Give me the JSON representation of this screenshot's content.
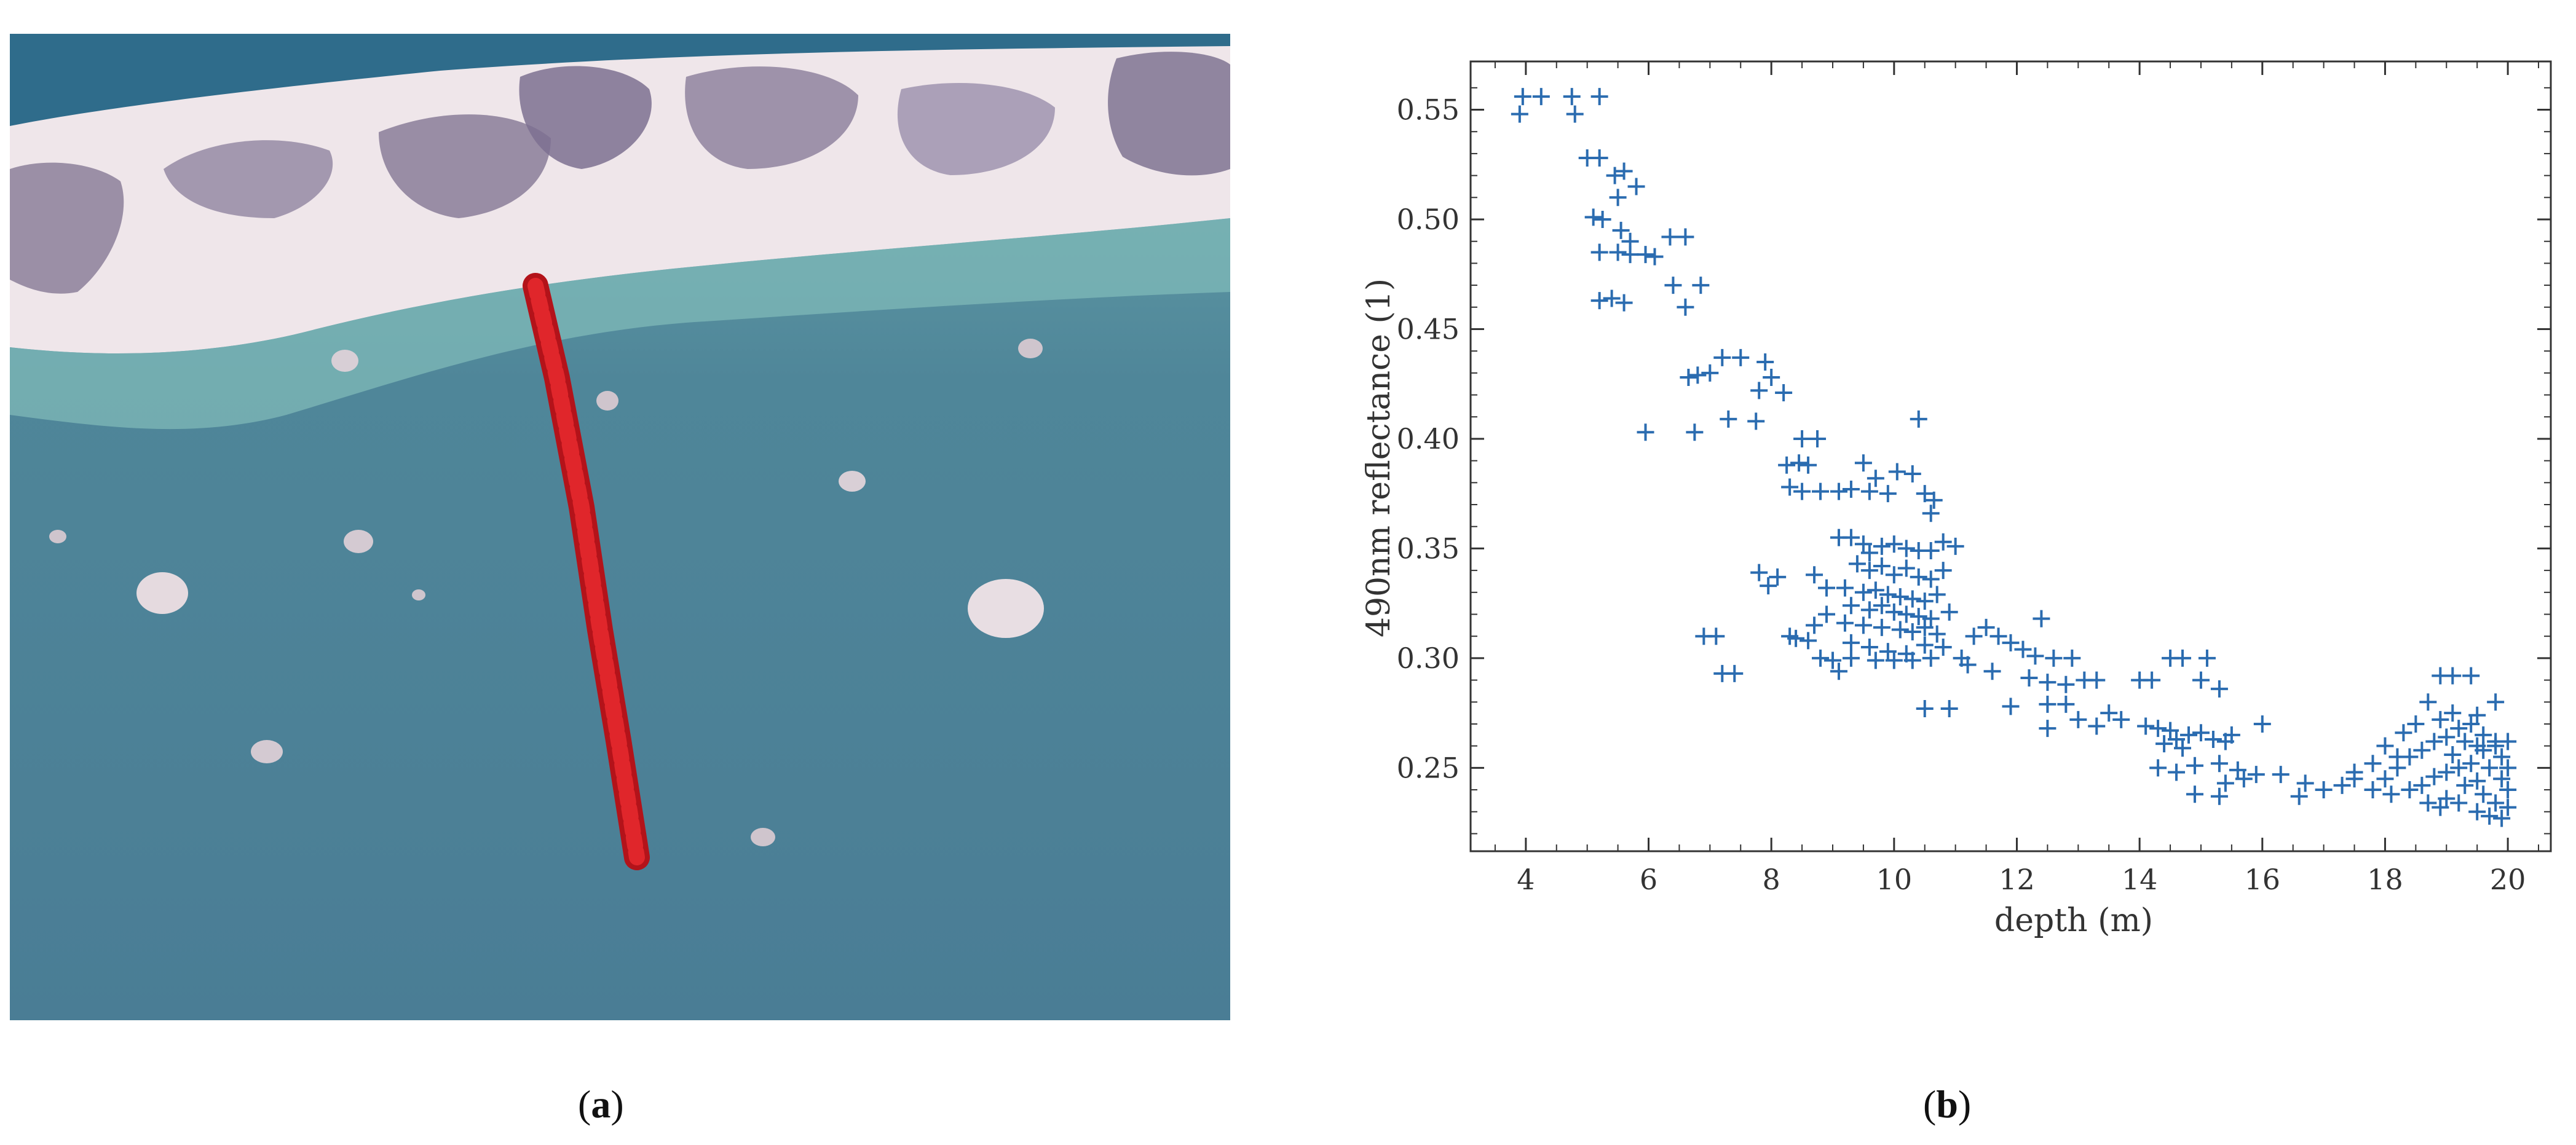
{
  "captions": {
    "a": "a",
    "b": "b"
  },
  "satellite_image": {
    "colors": {
      "deep_water": "#4a7d95",
      "shallow_water": "#7fb9b8",
      "sand": "#efe6ea",
      "vegetation": "#8c7f9a",
      "transect": "#d91e22"
    }
  },
  "chart_data": {
    "type": "scatter",
    "title": "",
    "xlabel": "depth (m)",
    "ylabel": "490nm reflectance (1)",
    "xlim": [
      3.1,
      20.7
    ],
    "ylim": [
      0.212,
      0.572
    ],
    "xticks": [
      4,
      6,
      8,
      10,
      12,
      14,
      16,
      18,
      20
    ],
    "yticks": [
      0.25,
      0.3,
      0.35,
      0.4,
      0.45,
      0.5,
      0.55
    ],
    "ytick_labels": [
      "0.25",
      "0.30",
      "0.35",
      "0.40",
      "0.45",
      "0.50",
      "0.55"
    ],
    "marker": "plus",
    "color": "#2b6cb0",
    "grid": false,
    "legend": "none",
    "points": [
      [
        3.95,
        0.556
      ],
      [
        4.25,
        0.556
      ],
      [
        4.75,
        0.556
      ],
      [
        5.2,
        0.556
      ],
      [
        3.9,
        0.548
      ],
      [
        4.8,
        0.548
      ],
      [
        5.0,
        0.528
      ],
      [
        5.2,
        0.528
      ],
      [
        5.45,
        0.52
      ],
      [
        5.6,
        0.522
      ],
      [
        5.8,
        0.515
      ],
      [
        5.5,
        0.51
      ],
      [
        5.1,
        0.501
      ],
      [
        5.25,
        0.5
      ],
      [
        5.55,
        0.495
      ],
      [
        5.7,
        0.49
      ],
      [
        6.35,
        0.492
      ],
      [
        6.6,
        0.492
      ],
      [
        5.2,
        0.485
      ],
      [
        5.5,
        0.485
      ],
      [
        5.7,
        0.484
      ],
      [
        5.95,
        0.484
      ],
      [
        6.1,
        0.483
      ],
      [
        6.4,
        0.47
      ],
      [
        6.85,
        0.47
      ],
      [
        5.2,
        0.463
      ],
      [
        5.4,
        0.464
      ],
      [
        5.6,
        0.462
      ],
      [
        6.6,
        0.46
      ],
      [
        6.65,
        0.428
      ],
      [
        6.8,
        0.429
      ],
      [
        7.0,
        0.43
      ],
      [
        7.2,
        0.437
      ],
      [
        7.5,
        0.437
      ],
      [
        7.9,
        0.435
      ],
      [
        8.0,
        0.428
      ],
      [
        7.8,
        0.422
      ],
      [
        8.2,
        0.421
      ],
      [
        7.3,
        0.409
      ],
      [
        7.75,
        0.408
      ],
      [
        5.95,
        0.403
      ],
      [
        6.75,
        0.403
      ],
      [
        8.5,
        0.4
      ],
      [
        8.75,
        0.4
      ],
      [
        10.4,
        0.409
      ],
      [
        8.25,
        0.388
      ],
      [
        8.45,
        0.389
      ],
      [
        8.6,
        0.388
      ],
      [
        9.5,
        0.389
      ],
      [
        9.7,
        0.382
      ],
      [
        10.05,
        0.385
      ],
      [
        10.3,
        0.384
      ],
      [
        10.5,
        0.375
      ],
      [
        10.65,
        0.372
      ],
      [
        10.6,
        0.366
      ],
      [
        8.3,
        0.378
      ],
      [
        8.5,
        0.376
      ],
      [
        8.8,
        0.376
      ],
      [
        9.1,
        0.376
      ],
      [
        9.3,
        0.377
      ],
      [
        9.6,
        0.376
      ],
      [
        9.9,
        0.375
      ],
      [
        9.1,
        0.355
      ],
      [
        9.3,
        0.355
      ],
      [
        9.5,
        0.352
      ],
      [
        9.6,
        0.348
      ],
      [
        9.8,
        0.351
      ],
      [
        10.0,
        0.352
      ],
      [
        10.2,
        0.35
      ],
      [
        10.4,
        0.349
      ],
      [
        10.6,
        0.349
      ],
      [
        10.8,
        0.353
      ],
      [
        11.0,
        0.351
      ],
      [
        9.4,
        0.343
      ],
      [
        9.6,
        0.34
      ],
      [
        9.8,
        0.342
      ],
      [
        10.0,
        0.338
      ],
      [
        10.2,
        0.341
      ],
      [
        10.4,
        0.337
      ],
      [
        10.6,
        0.336
      ],
      [
        10.8,
        0.34
      ],
      [
        8.7,
        0.338
      ],
      [
        8.9,
        0.332
      ],
      [
        7.8,
        0.339
      ],
      [
        8.1,
        0.337
      ],
      [
        7.95,
        0.333
      ],
      [
        9.2,
        0.332
      ],
      [
        9.5,
        0.33
      ],
      [
        9.7,
        0.331
      ],
      [
        9.9,
        0.329
      ],
      [
        10.1,
        0.328
      ],
      [
        10.3,
        0.327
      ],
      [
        10.5,
        0.326
      ],
      [
        10.7,
        0.329
      ],
      [
        9.3,
        0.324
      ],
      [
        9.6,
        0.322
      ],
      [
        9.8,
        0.324
      ],
      [
        10.0,
        0.321
      ],
      [
        10.2,
        0.32
      ],
      [
        10.4,
        0.319
      ],
      [
        10.6,
        0.318
      ],
      [
        10.9,
        0.321
      ],
      [
        9.5,
        0.315
      ],
      [
        9.8,
        0.314
      ],
      [
        10.1,
        0.313
      ],
      [
        10.3,
        0.312
      ],
      [
        10.5,
        0.314
      ],
      [
        10.7,
        0.311
      ],
      [
        8.7,
        0.315
      ],
      [
        8.9,
        0.32
      ],
      [
        9.2,
        0.316
      ],
      [
        8.4,
        0.309
      ],
      [
        8.6,
        0.308
      ],
      [
        9.3,
        0.307
      ],
      [
        9.6,
        0.305
      ],
      [
        9.9,
        0.303
      ],
      [
        10.2,
        0.302
      ],
      [
        10.5,
        0.306
      ],
      [
        10.8,
        0.305
      ],
      [
        11.1,
        0.3
      ],
      [
        8.8,
        0.3
      ],
      [
        9.0,
        0.299
      ],
      [
        9.3,
        0.3
      ],
      [
        9.7,
        0.299
      ],
      [
        10.0,
        0.299
      ],
      [
        10.3,
        0.299
      ],
      [
        10.6,
        0.3
      ],
      [
        9.1,
        0.294
      ],
      [
        8.3,
        0.31
      ],
      [
        6.9,
        0.31
      ],
      [
        7.1,
        0.31
      ],
      [
        7.2,
        0.293
      ],
      [
        7.4,
        0.293
      ],
      [
        11.3,
        0.31
      ],
      [
        11.5,
        0.314
      ],
      [
        11.7,
        0.31
      ],
      [
        11.9,
        0.307
      ],
      [
        12.1,
        0.304
      ],
      [
        12.3,
        0.301
      ],
      [
        12.6,
        0.3
      ],
      [
        12.9,
        0.3
      ],
      [
        11.2,
        0.297
      ],
      [
        11.6,
        0.294
      ],
      [
        12.2,
        0.291
      ],
      [
        12.5,
        0.289
      ],
      [
        12.8,
        0.288
      ],
      [
        13.1,
        0.29
      ],
      [
        13.3,
        0.29
      ],
      [
        12.4,
        0.318
      ],
      [
        11.9,
        0.278
      ],
      [
        12.5,
        0.279
      ],
      [
        12.8,
        0.279
      ],
      [
        13.5,
        0.275
      ],
      [
        10.5,
        0.277
      ],
      [
        10.9,
        0.277
      ],
      [
        12.5,
        0.268
      ],
      [
        13.0,
        0.272
      ],
      [
        13.3,
        0.269
      ],
      [
        13.7,
        0.272
      ],
      [
        14.0,
        0.29
      ],
      [
        14.2,
        0.29
      ],
      [
        14.5,
        0.3
      ],
      [
        14.7,
        0.3
      ],
      [
        15.0,
        0.29
      ],
      [
        15.3,
        0.286
      ],
      [
        15.1,
        0.3
      ],
      [
        14.1,
        0.269
      ],
      [
        14.3,
        0.268
      ],
      [
        14.5,
        0.267
      ],
      [
        14.6,
        0.263
      ],
      [
        14.8,
        0.265
      ],
      [
        15.0,
        0.266
      ],
      [
        15.2,
        0.263
      ],
      [
        15.4,
        0.262
      ],
      [
        14.4,
        0.261
      ],
      [
        14.7,
        0.259
      ],
      [
        15.5,
        0.265
      ],
      [
        14.3,
        0.25
      ],
      [
        14.6,
        0.248
      ],
      [
        14.9,
        0.251
      ],
      [
        15.3,
        0.252
      ],
      [
        15.6,
        0.249
      ],
      [
        15.4,
        0.243
      ],
      [
        15.7,
        0.245
      ],
      [
        15.9,
        0.247
      ],
      [
        16.3,
        0.247
      ],
      [
        16.0,
        0.27
      ],
      [
        14.9,
        0.238
      ],
      [
        15.3,
        0.237
      ],
      [
        16.6,
        0.237
      ],
      [
        17.0,
        0.24
      ],
      [
        17.3,
        0.242
      ],
      [
        17.5,
        0.245
      ],
      [
        16.7,
        0.243
      ],
      [
        17.8,
        0.24
      ],
      [
        18.0,
        0.245
      ],
      [
        18.2,
        0.25
      ],
      [
        18.4,
        0.255
      ],
      [
        18.6,
        0.258
      ],
      [
        18.8,
        0.262
      ],
      [
        19.0,
        0.264
      ],
      [
        19.2,
        0.268
      ],
      [
        19.4,
        0.27
      ],
      [
        19.6,
        0.265
      ],
      [
        19.8,
        0.262
      ],
      [
        19.9,
        0.255
      ],
      [
        18.3,
        0.266
      ],
      [
        18.5,
        0.27
      ],
      [
        18.9,
        0.272
      ],
      [
        19.1,
        0.275
      ],
      [
        19.5,
        0.274
      ],
      [
        19.8,
        0.28
      ],
      [
        18.9,
        0.292
      ],
      [
        19.1,
        0.292
      ],
      [
        19.4,
        0.292
      ],
      [
        18.7,
        0.28
      ],
      [
        19.7,
        0.25
      ],
      [
        19.9,
        0.245
      ],
      [
        20.0,
        0.24
      ],
      [
        19.6,
        0.238
      ],
      [
        19.8,
        0.234
      ],
      [
        20.0,
        0.232
      ],
      [
        19.5,
        0.23
      ],
      [
        19.7,
        0.228
      ],
      [
        19.9,
        0.227
      ],
      [
        18.1,
        0.238
      ],
      [
        18.4,
        0.24
      ],
      [
        18.6,
        0.242
      ],
      [
        18.8,
        0.246
      ],
      [
        19.0,
        0.248
      ],
      [
        19.2,
        0.25
      ],
      [
        19.4,
        0.252
      ],
      [
        19.3,
        0.242
      ],
      [
        19.5,
        0.244
      ],
      [
        19.0,
        0.236
      ],
      [
        19.2,
        0.234
      ],
      [
        18.7,
        0.234
      ],
      [
        18.9,
        0.232
      ],
      [
        19.6,
        0.258
      ],
      [
        19.8,
        0.26
      ],
      [
        20.0,
        0.25
      ],
      [
        20.0,
        0.262
      ],
      [
        18.0,
        0.26
      ],
      [
        17.8,
        0.252
      ],
      [
        17.5,
        0.248
      ],
      [
        19.3,
        0.262
      ],
      [
        19.1,
        0.256
      ],
      [
        19.5,
        0.26
      ],
      [
        18.2,
        0.255
      ]
    ]
  }
}
